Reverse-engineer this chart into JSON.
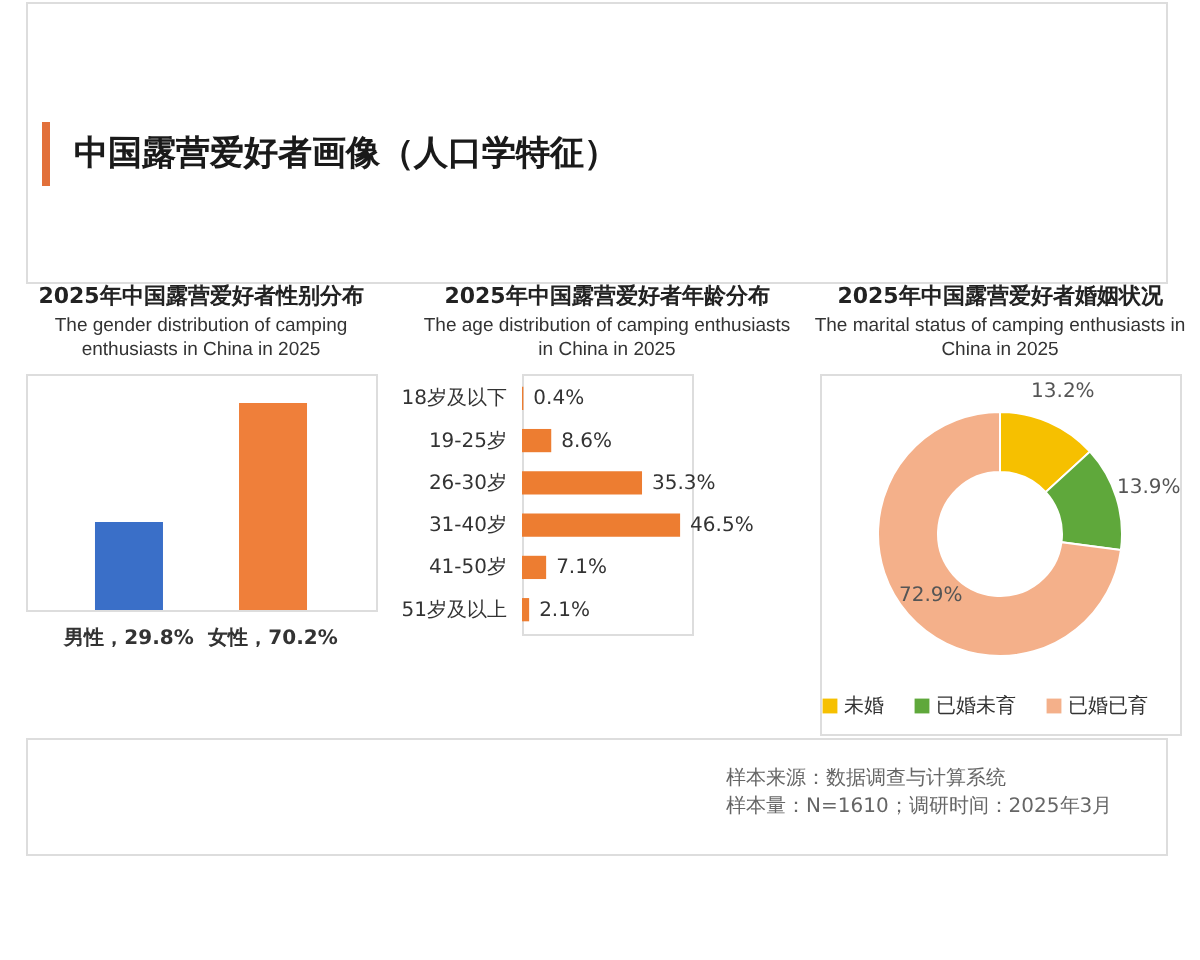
{
  "chart_data": [
    {
      "type": "other",
      "title": "中国露营爱好者画像（人口学特征）"
    },
    {
      "type": "bar",
      "title": "2025年中国露营爱好者性别分布",
      "subtitle": "The gender distribution of camping enthusiasts in China in 2025",
      "categories": [
        null,
        null
      ],
      "values": [
        29.8,
        70.2
      ],
      "colors": [
        "#3a6fc8",
        "#ef7f3a"
      ],
      "value_labels": [
        "男性，29.8%",
        "女性，70.2%"
      ],
      "tick_labels": false
    },
    {
      "type": "bar",
      "orientation": "horizontal",
      "title": "2025年中国露营爱好者年龄分布",
      "subtitle": "The age distribution of camping enthusiasts in China in 2025",
      "categories": [
        "18岁及以下",
        "19-25岁",
        "26-30岁",
        "31-40岁",
        "41-50岁",
        "51岁及以上"
      ],
      "values": [
        0.4,
        8.6,
        35.3,
        46.5,
        7.1,
        2.1
      ],
      "color": "#ed7d31",
      "value_labels": [
        "0.4%",
        "8.6%",
        "35.3%",
        "46.5%",
        "7.1%",
        "2.1%"
      ],
      "tick_labels": "y"
    },
    {
      "type": "donut",
      "title": "2025年中国露营爱好者婚姻状况",
      "subtitle": "The marital status of camping enthusiasts in China in 2025",
      "categories": [
        "未婚",
        "已婚未育",
        "已婚已育"
      ],
      "values": [
        13.2,
        13.9,
        72.9
      ],
      "colors": [
        "#f6c000",
        "#5fa83b",
        "#f4b08a"
      ],
      "value_labels": [
        "13.2%",
        "13.9%",
        "72.9%"
      ],
      "legend": "bottom"
    },
    {
      "type": "other",
      "annotations": [
        "样本来源：数据调查与计算系统",
        "样本量：N=1610；调研时间：2025年3月"
      ]
    }
  ]
}
